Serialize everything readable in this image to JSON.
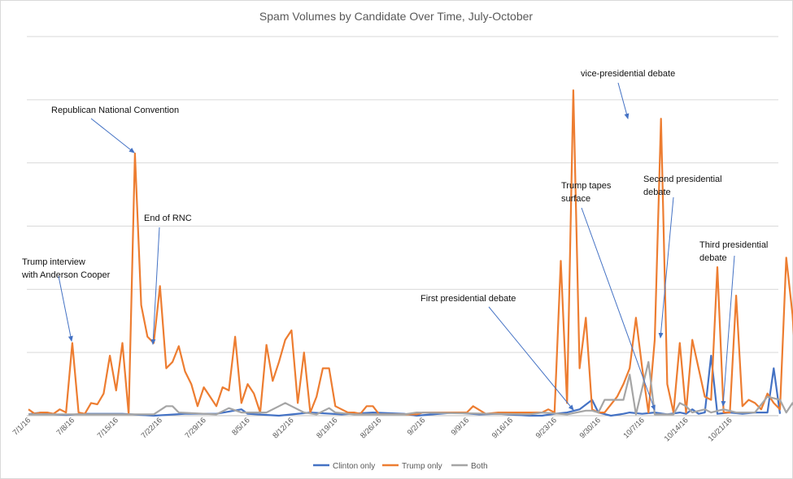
{
  "chart_data": {
    "type": "line",
    "title": "Spam Volumes by Candidate Over Time, July-October",
    "xlabel": "",
    "ylabel": "",
    "grid": true,
    "legend_position": "bottom",
    "x_tick_labels": [
      "7/1/16",
      "7/8/16",
      "7/15/16",
      "7/22/16",
      "7/29/16",
      "8/5/16",
      "8/12/16",
      "8/19/16",
      "8/26/16",
      "9/2/16",
      "9/9/16",
      "9/16/16",
      "9/23/16",
      "9/30/16",
      "10/7/16",
      "10/14/16",
      "10/21/16"
    ],
    "ylim": [
      0,
      6
    ],
    "x_days": 120,
    "series": [
      {
        "name": "Clinton only",
        "color": "#4472C4",
        "values": [
          [
            0,
            0.02
          ],
          [
            2,
            0.05
          ],
          [
            4,
            0.02
          ],
          [
            6,
            0.01
          ],
          [
            9,
            0.03
          ],
          [
            15,
            0.03
          ],
          [
            20,
            0
          ],
          [
            25,
            0.03
          ],
          [
            30,
            0.03
          ],
          [
            34,
            0.1
          ],
          [
            35,
            0.03
          ],
          [
            40,
            0
          ],
          [
            45,
            0.05
          ],
          [
            50,
            0.02
          ],
          [
            55,
            0.05
          ],
          [
            60,
            0.03
          ],
          [
            62,
            0
          ],
          [
            68,
            0.05
          ],
          [
            72,
            0.02
          ],
          [
            75,
            0.03
          ],
          [
            80,
            0
          ],
          [
            82,
            0
          ],
          [
            84,
            0.03
          ],
          [
            86,
            0.05
          ],
          [
            88,
            0.1
          ],
          [
            90,
            0.25
          ],
          [
            91,
            0.05
          ],
          [
            93,
            0
          ],
          [
            95,
            0.03
          ],
          [
            96,
            0.05
          ],
          [
            98,
            0.03
          ],
          [
            100,
            0.05
          ],
          [
            102,
            0.02
          ],
          [
            104,
            0.05
          ],
          [
            105,
            0.03
          ],
          [
            106,
            0.1
          ],
          [
            107,
            0.03
          ],
          [
            108,
            0.05
          ],
          [
            109,
            0.95
          ],
          [
            110,
            0.03
          ],
          [
            112,
            0.05
          ],
          [
            114,
            0.03
          ],
          [
            116,
            0.05
          ],
          [
            118,
            0.05
          ],
          [
            119,
            0.75
          ],
          [
            120,
            0.03
          ]
        ]
      },
      {
        "name": "Trump only",
        "color": "#ED7D31",
        "values": [
          [
            0,
            0.1
          ],
          [
            1,
            0.03
          ],
          [
            2,
            0.05
          ],
          [
            3,
            0.05
          ],
          [
            4,
            0.03
          ],
          [
            5,
            0.1
          ],
          [
            6,
            0.05
          ],
          [
            7,
            1.15
          ],
          [
            8,
            0.05
          ],
          [
            9,
            0.03
          ],
          [
            10,
            0.2
          ],
          [
            11,
            0.18
          ],
          [
            12,
            0.35
          ],
          [
            13,
            0.95
          ],
          [
            14,
            0.4
          ],
          [
            15,
            1.15
          ],
          [
            16,
            0.02
          ],
          [
            17,
            4.15
          ],
          [
            18,
            1.75
          ],
          [
            19,
            1.25
          ],
          [
            20,
            1.15
          ],
          [
            21,
            2.05
          ],
          [
            22,
            0.75
          ],
          [
            23,
            0.85
          ],
          [
            24,
            1.1
          ],
          [
            25,
            0.7
          ],
          [
            26,
            0.5
          ],
          [
            27,
            0.15
          ],
          [
            28,
            0.45
          ],
          [
            29,
            0.3
          ],
          [
            30,
            0.15
          ],
          [
            31,
            0.45
          ],
          [
            32,
            0.4
          ],
          [
            33,
            1.25
          ],
          [
            34,
            0.2
          ],
          [
            35,
            0.5
          ],
          [
            36,
            0.35
          ],
          [
            37,
            0.05
          ],
          [
            38,
            1.12
          ],
          [
            39,
            0.55
          ],
          [
            40,
            0.85
          ],
          [
            41,
            1.2
          ],
          [
            42,
            1.35
          ],
          [
            43,
            0.2
          ],
          [
            44,
            1.0
          ],
          [
            45,
            0.05
          ],
          [
            46,
            0.3
          ],
          [
            47,
            0.75
          ],
          [
            48,
            0.75
          ],
          [
            49,
            0.15
          ],
          [
            50,
            0.1
          ],
          [
            51,
            0.05
          ],
          [
            52,
            0.05
          ],
          [
            53,
            0.03
          ],
          [
            54,
            0.15
          ],
          [
            55,
            0.15
          ],
          [
            56,
            0.02
          ],
          [
            60,
            0.02
          ],
          [
            62,
            0.02
          ],
          [
            63,
            0.05
          ],
          [
            65,
            0.05
          ],
          [
            67,
            0.05
          ],
          [
            69,
            0.05
          ],
          [
            70,
            0.05
          ],
          [
            71,
            0.15
          ],
          [
            73,
            0.03
          ],
          [
            75,
            0.05
          ],
          [
            77,
            0.05
          ],
          [
            80,
            0.05
          ],
          [
            82,
            0.05
          ],
          [
            83,
            0.1
          ],
          [
            84,
            0.05
          ],
          [
            85,
            2.45
          ],
          [
            86,
            0.2
          ],
          [
            87,
            5.15
          ],
          [
            88,
            0.75
          ],
          [
            89,
            1.55
          ],
          [
            90,
            0.1
          ],
          [
            91,
            0.05
          ],
          [
            92,
            0.05
          ],
          [
            94,
            0.3
          ],
          [
            95,
            0.5
          ],
          [
            96,
            0.75
          ],
          [
            97,
            1.55
          ],
          [
            98,
            0.75
          ],
          [
            99,
            0.05
          ],
          [
            100,
            1.2
          ],
          [
            101,
            4.7
          ],
          [
            102,
            0.5
          ],
          [
            103,
            0.05
          ],
          [
            104,
            1.15
          ],
          [
            105,
            0.05
          ],
          [
            106,
            1.2
          ],
          [
            107,
            0.75
          ],
          [
            108,
            0.3
          ],
          [
            109,
            0.25
          ],
          [
            110,
            2.35
          ],
          [
            111,
            0.05
          ],
          [
            112,
            0.05
          ],
          [
            113,
            1.9
          ],
          [
            114,
            0.15
          ],
          [
            115,
            0.25
          ],
          [
            116,
            0.2
          ],
          [
            117,
            0.1
          ],
          [
            118,
            0.35
          ],
          [
            119,
            0.2
          ],
          [
            120,
            0.1
          ],
          [
            121,
            2.5
          ],
          [
            122,
            1.6
          ],
          [
            123,
            0.1
          ]
        ]
      },
      {
        "name": "Both",
        "color": "#A5A5A5",
        "values": [
          [
            0,
            0.02
          ],
          [
            20,
            0.02
          ],
          [
            22,
            0.15
          ],
          [
            23,
            0.15
          ],
          [
            24,
            0.05
          ],
          [
            30,
            0.02
          ],
          [
            32,
            0.12
          ],
          [
            34,
            0.05
          ],
          [
            36,
            0.05
          ],
          [
            38,
            0.05
          ],
          [
            40,
            0.15
          ],
          [
            41,
            0.2
          ],
          [
            42,
            0.15
          ],
          [
            44,
            0.05
          ],
          [
            46,
            0.02
          ],
          [
            48,
            0.12
          ],
          [
            49,
            0.05
          ],
          [
            52,
            0.02
          ],
          [
            60,
            0.02
          ],
          [
            62,
            0.05
          ],
          [
            80,
            0.02
          ],
          [
            82,
            0.05
          ],
          [
            86,
            0.02
          ],
          [
            89,
            0.08
          ],
          [
            90,
            0.08
          ],
          [
            91,
            0.05
          ],
          [
            92,
            0.25
          ],
          [
            95,
            0.25
          ],
          [
            96,
            0.65
          ],
          [
            97,
            0.02
          ],
          [
            99,
            0.85
          ],
          [
            100,
            0.02
          ],
          [
            101,
            0.02
          ],
          [
            103,
            0.02
          ],
          [
            104,
            0.2
          ],
          [
            105,
            0.15
          ],
          [
            106,
            0.05
          ],
          [
            108,
            0.1
          ],
          [
            109,
            0.05
          ],
          [
            111,
            0.1
          ],
          [
            113,
            0.05
          ],
          [
            114,
            0.05
          ],
          [
            116,
            0.05
          ],
          [
            118,
            0.3
          ],
          [
            120,
            0.25
          ],
          [
            121,
            0.05
          ],
          [
            122,
            0.2
          ],
          [
            123,
            0.03
          ]
        ]
      }
    ],
    "annotations": [
      {
        "lines": [
          "Trump interview",
          "with Anderson Cooper"
        ]
      },
      {
        "lines": [
          "Republican National Convention"
        ]
      },
      {
        "lines": [
          "End of RNC"
        ]
      },
      {
        "lines": [
          "First presidential debate"
        ]
      },
      {
        "lines": [
          "vice-presidential debate"
        ]
      },
      {
        "lines": [
          "Trump tapes",
          "surface"
        ]
      },
      {
        "lines": [
          "Second presidential",
          "debate"
        ]
      },
      {
        "lines": [
          "Third presidential",
          "debate"
        ]
      }
    ]
  }
}
